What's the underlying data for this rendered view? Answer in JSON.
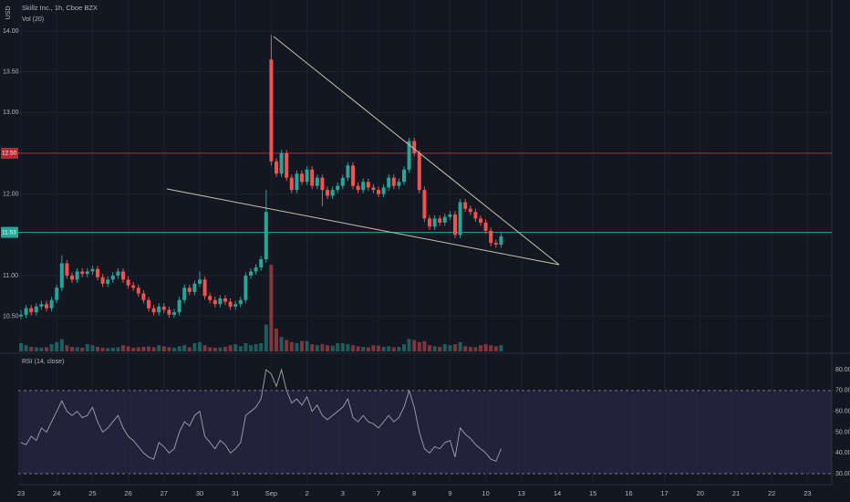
{
  "chart_data": {
    "type": "candlestick",
    "title": "Skillz Inc., 1h, Cboe BZX",
    "currency": "USD",
    "volume_label": "Vol (20)",
    "rsi_label": "RSI (14, close)",
    "up_color": "#26a69a",
    "down_color": "#ef5350",
    "grid": true,
    "categories": [
      "23",
      "24",
      "25",
      "26",
      "27",
      "30",
      "31",
      "Sep",
      "2",
      "3",
      "7",
      "8",
      "9",
      "10",
      "13",
      "14",
      "15",
      "16",
      "17",
      "20",
      "21",
      "22",
      "23"
    ],
    "ylim": [
      10.07,
      14.38
    ],
    "yticks": [
      {
        "value": 10.5,
        "label": "10.50"
      },
      {
        "value": 11,
        "label": "11.00"
      },
      {
        "value": 11.5,
        "label": "11.50"
      },
      {
        "value": 12,
        "label": "12.00"
      },
      {
        "value": 12.5,
        "label": "12.50"
      },
      {
        "value": 13,
        "label": "13.00"
      },
      {
        "value": 13.5,
        "label": "13.50"
      },
      {
        "value": 14,
        "label": "14.00"
      }
    ],
    "hlines": [
      {
        "value": 12.5,
        "label": "12.50",
        "color": "#b22833"
      },
      {
        "value": 11.53,
        "label": "11.53",
        "color": "#26a69a"
      }
    ],
    "ohlc": [
      [
        10.5,
        10.58,
        10.46,
        10.52
      ],
      [
        10.52,
        10.64,
        10.48,
        10.6
      ],
      [
        10.6,
        10.64,
        10.51,
        10.55
      ],
      [
        10.55,
        10.66,
        10.51,
        10.62
      ],
      [
        10.62,
        10.69,
        10.58,
        10.65
      ],
      [
        10.65,
        10.69,
        10.56,
        10.6
      ],
      [
        10.6,
        10.74,
        10.56,
        10.7
      ],
      [
        10.7,
        10.89,
        10.66,
        10.85
      ],
      [
        10.85,
        11.25,
        10.81,
        11.15
      ],
      [
        11.15,
        11.19,
        10.96,
        11.0
      ],
      [
        11.0,
        11.04,
        10.91,
        10.95
      ],
      [
        10.95,
        11.09,
        10.91,
        11.05
      ],
      [
        11.05,
        11.09,
        10.98,
        11.02
      ],
      [
        11.02,
        11.09,
        10.98,
        11.05
      ],
      [
        11.05,
        11.12,
        11.01,
        11.08
      ],
      [
        11.08,
        11.12,
        10.94,
        10.98
      ],
      [
        10.98,
        11.02,
        10.86,
        10.9
      ],
      [
        10.9,
        10.99,
        10.86,
        10.95
      ],
      [
        10.95,
        11.04,
        10.91,
        11.0
      ],
      [
        11.0,
        11.09,
        10.96,
        11.05
      ],
      [
        11.05,
        11.09,
        10.91,
        10.95
      ],
      [
        10.95,
        10.99,
        10.84,
        10.88
      ],
      [
        10.88,
        10.92,
        10.81,
        10.85
      ],
      [
        10.85,
        10.89,
        10.74,
        10.78
      ],
      [
        10.78,
        10.82,
        10.66,
        10.7
      ],
      [
        10.7,
        10.74,
        10.56,
        10.6
      ],
      [
        10.6,
        10.64,
        10.51,
        10.55
      ],
      [
        10.55,
        10.66,
        10.51,
        10.62
      ],
      [
        10.62,
        10.66,
        10.54,
        10.58
      ],
      [
        10.58,
        10.62,
        10.48,
        10.52
      ],
      [
        10.52,
        10.59,
        10.48,
        10.55
      ],
      [
        10.55,
        10.74,
        10.51,
        10.7
      ],
      [
        10.7,
        10.89,
        10.66,
        10.85
      ],
      [
        10.85,
        10.89,
        10.76,
        10.8
      ],
      [
        10.8,
        10.94,
        10.76,
        10.9
      ],
      [
        10.9,
        11.05,
        10.86,
        10.95
      ],
      [
        10.95,
        10.99,
        10.71,
        10.75
      ],
      [
        10.75,
        10.79,
        10.66,
        10.7
      ],
      [
        10.7,
        10.74,
        10.61,
        10.65
      ],
      [
        10.65,
        10.76,
        10.61,
        10.72
      ],
      [
        10.72,
        10.76,
        10.64,
        10.68
      ],
      [
        10.68,
        10.72,
        10.58,
        10.62
      ],
      [
        10.62,
        10.69,
        10.58,
        10.65
      ],
      [
        10.65,
        10.74,
        10.61,
        10.7
      ],
      [
        10.7,
        11.04,
        10.66,
        11.0
      ],
      [
        11.0,
        11.09,
        10.96,
        11.05
      ],
      [
        11.05,
        11.14,
        11.01,
        11.1
      ],
      [
        11.1,
        11.24,
        11.06,
        11.2
      ],
      [
        11.2,
        12.05,
        11.16,
        11.78
      ],
      [
        13.65,
        13.95,
        12.35,
        12.4
      ],
      [
        12.4,
        12.44,
        12.21,
        12.25
      ],
      [
        12.25,
        12.54,
        12.21,
        12.5
      ],
      [
        12.5,
        12.54,
        12.16,
        12.2
      ],
      [
        12.2,
        12.24,
        12.01,
        12.05
      ],
      [
        12.05,
        12.29,
        12.01,
        12.25
      ],
      [
        12.25,
        12.29,
        12.11,
        12.15
      ],
      [
        12.15,
        12.34,
        12.11,
        12.3
      ],
      [
        12.3,
        12.34,
        12.06,
        12.1
      ],
      [
        12.1,
        12.24,
        12.06,
        12.2
      ],
      [
        12.2,
        12.24,
        11.85,
        12.05
      ],
      [
        12.05,
        12.09,
        11.94,
        11.98
      ],
      [
        11.98,
        12.09,
        11.94,
        12.05
      ],
      [
        12.05,
        12.14,
        12.01,
        12.1
      ],
      [
        12.1,
        12.24,
        12.06,
        12.2
      ],
      [
        12.2,
        12.39,
        12.16,
        12.35
      ],
      [
        12.35,
        12.39,
        12.06,
        12.1
      ],
      [
        12.1,
        12.14,
        12.01,
        12.05
      ],
      [
        12.05,
        12.19,
        12.01,
        12.15
      ],
      [
        12.15,
        12.19,
        12.04,
        12.08
      ],
      [
        12.08,
        12.12,
        12.01,
        12.05
      ],
      [
        12.05,
        12.09,
        11.96,
        12.0
      ],
      [
        12.0,
        12.12,
        11.96,
        12.08
      ],
      [
        12.08,
        12.24,
        12.04,
        12.2
      ],
      [
        12.2,
        12.24,
        12.06,
        12.1
      ],
      [
        12.1,
        12.19,
        12.06,
        12.15
      ],
      [
        12.15,
        12.34,
        12.11,
        12.3
      ],
      [
        12.3,
        12.69,
        12.26,
        12.65
      ],
      [
        12.65,
        12.69,
        12.46,
        12.5
      ],
      [
        12.5,
        12.54,
        12.01,
        12.05
      ],
      [
        12.05,
        12.09,
        11.66,
        11.7
      ],
      [
        11.7,
        11.74,
        11.56,
        11.6
      ],
      [
        11.6,
        11.74,
        11.56,
        11.7
      ],
      [
        11.7,
        11.74,
        11.61,
        11.65
      ],
      [
        11.65,
        11.76,
        11.61,
        11.72
      ],
      [
        11.72,
        11.79,
        11.68,
        11.75
      ],
      [
        11.75,
        11.79,
        11.46,
        11.5
      ],
      [
        11.5,
        11.94,
        11.46,
        11.9
      ],
      [
        11.9,
        11.94,
        11.78,
        11.82
      ],
      [
        11.82,
        11.86,
        11.74,
        11.78
      ],
      [
        11.78,
        11.82,
        11.66,
        11.7
      ],
      [
        11.7,
        11.74,
        11.61,
        11.65
      ],
      [
        11.65,
        11.69,
        11.51,
        11.55
      ],
      [
        11.55,
        11.59,
        11.36,
        11.4
      ],
      [
        11.4,
        11.44,
        11.34,
        11.38
      ],
      [
        11.38,
        11.52,
        11.34,
        11.48
      ]
    ],
    "volume": [
      40,
      30,
      22,
      20,
      18,
      20,
      35,
      45,
      60,
      30,
      22,
      20,
      18,
      35,
      30,
      22,
      18,
      16,
      18,
      20,
      30,
      25,
      18,
      20,
      22,
      24,
      20,
      30,
      25,
      20,
      18,
      25,
      30,
      20,
      40,
      45,
      30,
      20,
      18,
      18,
      22,
      30,
      35,
      25,
      40,
      30,
      35,
      40,
      130,
      420,
      110,
      70,
      55,
      45,
      40,
      50,
      50,
      35,
      30,
      35,
      30,
      28,
      40,
      40,
      35,
      30,
      25,
      22,
      20,
      30,
      28,
      22,
      25,
      20,
      22,
      35,
      60,
      55,
      45,
      50,
      30,
      25,
      22,
      35,
      30,
      35,
      45,
      25,
      22,
      20,
      30,
      35,
      30,
      25,
      30
    ],
    "rsi": [
      45,
      44,
      48,
      46,
      52,
      50,
      55,
      60,
      65,
      60,
      58,
      60,
      57,
      58,
      62,
      55,
      50,
      52,
      55,
      58,
      52,
      48,
      46,
      43,
      40,
      38,
      37,
      45,
      43,
      40,
      42,
      50,
      55,
      53,
      58,
      60,
      48,
      45,
      42,
      46,
      44,
      40,
      42,
      45,
      58,
      60,
      62,
      66,
      80,
      78,
      72,
      80,
      70,
      64,
      66,
      63,
      67,
      60,
      63,
      58,
      56,
      58,
      60,
      62,
      66,
      57,
      55,
      58,
      55,
      54,
      52,
      55,
      58,
      55,
      57,
      62,
      70,
      62,
      50,
      42,
      40,
      43,
      42,
      45,
      46,
      38,
      52,
      49,
      47,
      44,
      42,
      40,
      37,
      36,
      42
    ],
    "rsi_color": "#9598a1",
    "rsi_band": [
      30,
      70
    ],
    "rsi_ylim": [
      25.2,
      87.5
    ],
    "rsi_yticks": [
      {
        "value": 30,
        "label": "30.00"
      },
      {
        "value": 40,
        "label": "40.00"
      },
      {
        "value": 50,
        "label": "50.00"
      },
      {
        "value": 60,
        "label": "60.00"
      },
      {
        "value": 70,
        "label": "70.00"
      },
      {
        "value": 80,
        "label": "80.00"
      }
    ]
  }
}
